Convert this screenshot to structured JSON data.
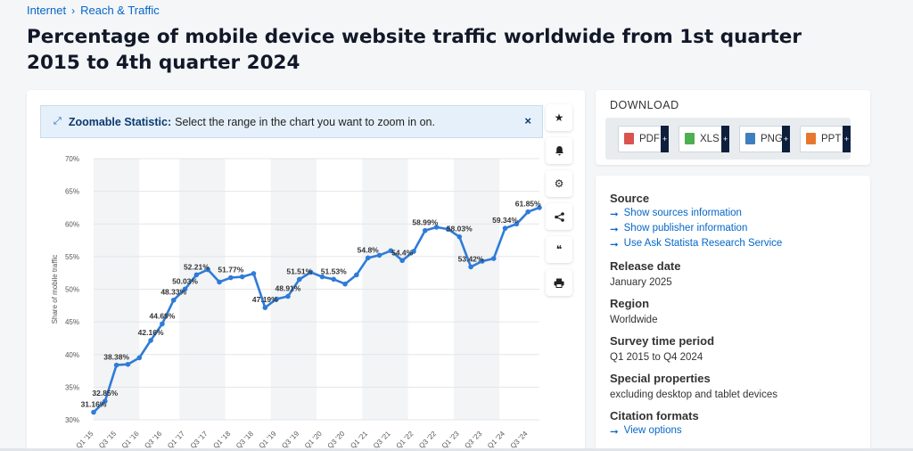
{
  "breadcrumb": {
    "items": [
      "Internet",
      "Reach & Traffic"
    ],
    "separator": "›"
  },
  "page": {
    "title": "Percentage of mobile device website traffic worldwide from 1st quarter 2015 to 4th quarter 2024"
  },
  "zoom_banner": {
    "title": "Zoomable Statistic:",
    "text": "Select the range in the chart you want to zoom in on.",
    "close": "×"
  },
  "tools": [
    {
      "name": "star-icon",
      "glyph": "★"
    },
    {
      "name": "bell-icon",
      "glyph": "🔔"
    },
    {
      "name": "gear-icon",
      "glyph": "⚙"
    },
    {
      "name": "share-icon",
      "glyph": "<"
    },
    {
      "name": "quote-icon",
      "glyph": "❝"
    },
    {
      "name": "print-icon",
      "glyph": "🖶"
    }
  ],
  "download": {
    "title": "DOWNLOAD",
    "buttons": [
      {
        "label": "PDF",
        "color": "#d9534f"
      },
      {
        "label": "XLS",
        "color": "#4caf50"
      },
      {
        "label": "PNG",
        "color": "#3f7fbf"
      },
      {
        "label": "PPT",
        "color": "#e8772e"
      }
    ],
    "plus": "+"
  },
  "meta": {
    "source_label": "Source",
    "links": [
      "Show sources information",
      "Show publisher information",
      "Use Ask Statista Research Service"
    ],
    "link_arrow": "➞",
    "release_label": "Release date",
    "release_value": "January 2025",
    "region_label": "Region",
    "region_value": "Worldwide",
    "survey_label": "Survey time period",
    "survey_value": "Q1 2015 to Q4 2024",
    "special_label": "Special properties",
    "special_value": "excluding desktop and tablet devices",
    "citation_label": "Citation formats",
    "citation_link": "View options"
  },
  "colors": {
    "line": "#2f7bd8",
    "accent": "#0666c8",
    "grid": "#e3e6ea",
    "band": "#f2f4f6"
  },
  "chart_data": {
    "type": "line",
    "ylabel": "Share of mobile traffic",
    "ylim": [
      30,
      70
    ],
    "yticks": [
      "30%",
      "35%",
      "40%",
      "45%",
      "50%",
      "55%",
      "60%",
      "65%",
      "70%"
    ],
    "x": [
      "Q1 '15",
      "Q2 '15",
      "Q3 '15",
      "Q4 '15",
      "Q1 '16",
      "Q2 '16",
      "Q3 '16",
      "Q4 '16",
      "Q1 '17",
      "Q2 '17",
      "Q3 '17",
      "Q4 '17",
      "Q1 '18",
      "Q2 '18",
      "Q3 '18",
      "Q4 '18",
      "Q1 '19",
      "Q2 '19",
      "Q3 '19",
      "Q4 '19",
      "Q1 '20",
      "Q2 '20",
      "Q3 '20",
      "Q4 '20",
      "Q1 '21",
      "Q2 '21",
      "Q3 '21",
      "Q4 '21",
      "Q1 '22",
      "Q2 '22",
      "Q3 '22",
      "Q4 '22",
      "Q1 '23",
      "Q2 '23",
      "Q3 '23",
      "Q4 '23",
      "Q1 '24",
      "Q2 '24",
      "Q3 '24",
      "Q4 '24"
    ],
    "xtick_labels": [
      "Q1 '15",
      "Q3 '15",
      "Q1 '16",
      "Q3 '16",
      "Q1 '17",
      "Q3 '17",
      "Q1 '18",
      "Q3 '18",
      "Q1 '19",
      "Q3 '19",
      "Q1 '20",
      "Q3 '20",
      "Q1 '21",
      "Q3 '21",
      "Q1 '22",
      "Q3 '22",
      "Q1 '23",
      "Q3 '23",
      "Q1 '24",
      "Q3 '24"
    ],
    "values": [
      31.16,
      32.85,
      38.38,
      38.5,
      39.5,
      42.16,
      44.69,
      48.33,
      50.03,
      52.21,
      53.0,
      51.1,
      51.77,
      51.9,
      52.4,
      47.19,
      48.5,
      48.91,
      51.51,
      52.6,
      51.9,
      51.53,
      50.8,
      52.2,
      54.8,
      55.2,
      55.9,
      54.4,
      55.8,
      58.99,
      59.5,
      59.2,
      58.03,
      53.42,
      54.3,
      54.7,
      59.34,
      60.0,
      61.85,
      62.5
    ],
    "data_labels": {
      "0": "31.16%",
      "1": "32.85%",
      "2": "38.38%",
      "5": "42.16%",
      "6": "44.69%",
      "7": "48.33%",
      "8": "50.03%",
      "9": "52.21%",
      "12": "51.77%",
      "15": "47.19%",
      "17": "48.91%",
      "18": "51.51%",
      "21": "51.53%",
      "24": "54.8%",
      "27": "54.4%",
      "29": "58.99%",
      "32": "58.03%",
      "33": "53.42%",
      "36": "59.34%",
      "38": "61.85%"
    },
    "grid": true
  }
}
